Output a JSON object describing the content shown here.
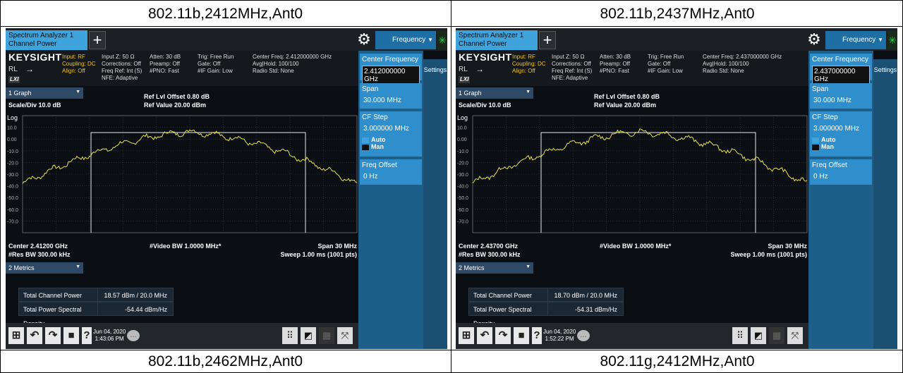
{
  "captions": {
    "top_left": "802.11b,2412MHz,Ant0",
    "top_right": "802.11b,2437MHz,Ant0",
    "bottom_left": "802.11b,2462MHz,Ant0",
    "bottom_right": "802.11g,2412MHz,Ant0"
  },
  "left": {
    "tab_line1": "Spectrum Analyzer 1",
    "tab_line2": "Channel Power",
    "freq_menu": "Frequency",
    "brand": "KEYSIGHT",
    "input_rf": "Input: RF",
    "coupling": "Coupling: DC",
    "align": "Align: Off",
    "rl": "RL",
    "lxi": "LXI",
    "col2": "Input Z: 50 Ω\nCorrections: Off\nFreq Ref: Int (S)\nNFE: Adaptive",
    "col3": "Atten: 30 dB\nPreamp: Off\n#PNO: Fast",
    "col4": "Trig: Free Run\nGate: Off\n#IF Gain: Low",
    "col5": "Center Freq: 2.412000000 GHz\nAvg|Hold: 100/100\nRadio Std: None",
    "settings": "Settings",
    "center_freq_label": "Center Frequency",
    "center_freq_value": "2.412000000 GHz",
    "span_label": "Span",
    "span_value": "30.000 MHz",
    "cf_step_label": "CF Step",
    "cf_step_value": "3.000000 MHz",
    "auto": "Auto",
    "man": "Man",
    "freq_offset_label": "Freq Offset",
    "freq_offset_value": "0 Hz",
    "graph_select": "1 Graph",
    "scale": "Scale/Div 10.0 dB",
    "log": "Log",
    "ref_offset": "Ref Lvl Offset 0.80 dB",
    "ref_value": "Ref Value 20.00 dBm",
    "y_ticks": [
      "10.0",
      "0.00",
      "-10.0",
      "-20.0",
      "-30.0",
      "-40.0",
      "-50.0",
      "-60.0",
      "-70.0"
    ],
    "center": "Center 2.41200 GHz",
    "res_bw": "#Res BW 300.00 kHz",
    "video_bw": "#Video BW 1.0000 MHz*",
    "span": "Span 30 MHz",
    "sweep": "Sweep 1.00 ms (1001 pts)",
    "metrics_select": "2 Metrics",
    "m1_label": "Total Channel Power",
    "m1_value": "18.57 dBm / 20.0 MHz",
    "m2_label": "Total Power Spectral Density",
    "m2_value": "-54.44 dBm/Hz",
    "date": "Jun 04, 2020",
    "time": "1:43:06 PM"
  },
  "right": {
    "tab_line1": "Spectrum Analyzer 1",
    "tab_line2": "Channel Power",
    "freq_menu": "Frequency",
    "brand": "KEYSIGHT",
    "input_rf": "Input: RF",
    "coupling": "Coupling: DC",
    "align": "Align: Off",
    "rl": "RL",
    "lxi": "LXI",
    "col2": "Input Z: 50 Ω\nCorrections: Off\nFreq Ref: Int (S)\nNFE: Adaptive",
    "col3": "Atten: 30 dB\nPreamp: Off\n#PNO: Fast",
    "col4": "Trig: Free Run\nGate: Off\n#IF Gain: Low",
    "col5": "Center Freq: 2.437000000 GHz\nAvg|Hold: 100/100\nRadio Std: None",
    "settings": "Settings",
    "center_freq_label": "Center Frequency",
    "center_freq_value": "2.437000000 GHz",
    "span_label": "Span",
    "span_value": "30.000 MHz",
    "cf_step_label": "CF Step",
    "cf_step_value": "3.000000 MHz",
    "auto": "Auto",
    "man": "Man",
    "freq_offset_label": "Freq Offset",
    "freq_offset_value": "0 Hz",
    "graph_select": "1 Graph",
    "scale": "Scale/Div 10.0 dB",
    "log": "Log",
    "ref_offset": "Ref Lvl Offset 0.80 dB",
    "ref_value": "Ref Value 20.00 dBm",
    "y_ticks": [
      "10.0",
      "0.00",
      "-10.0",
      "-20.0",
      "-30.0",
      "-40.0",
      "-50.0",
      "-60.0",
      "-70.0"
    ],
    "center": "Center 2.43700 GHz",
    "res_bw": "#Res BW 300.00 kHz",
    "video_bw": "#Video BW 1.0000 MHz*",
    "span": "Span 30 MHz",
    "sweep": "Sweep 1.00 ms (1001 pts)",
    "metrics_select": "2 Metrics",
    "m1_label": "Total Channel Power",
    "m1_value": "18.70 dBm / 20.0 MHz",
    "m2_label": "Total Power Spectral Density",
    "m2_value": "-54.31 dBm/Hz",
    "date": "Jun 04, 2020",
    "time": "1:52:22 PM"
  },
  "colors": {
    "trace": "#e8e04a",
    "accent": "#3fa3dc",
    "plot_bg": "#0b0f14"
  },
  "icons": {
    "tab_add": "plus-icon",
    "settings": "gear-icon",
    "status": "spinner-icon",
    "taskbar": [
      "windows-icon",
      "undo-icon",
      "redo-icon",
      "file-icon",
      "help-icon",
      "chat-icon",
      "keypad-icon",
      "touch-icon",
      "layout-icon",
      "fullscreen-icon"
    ]
  }
}
